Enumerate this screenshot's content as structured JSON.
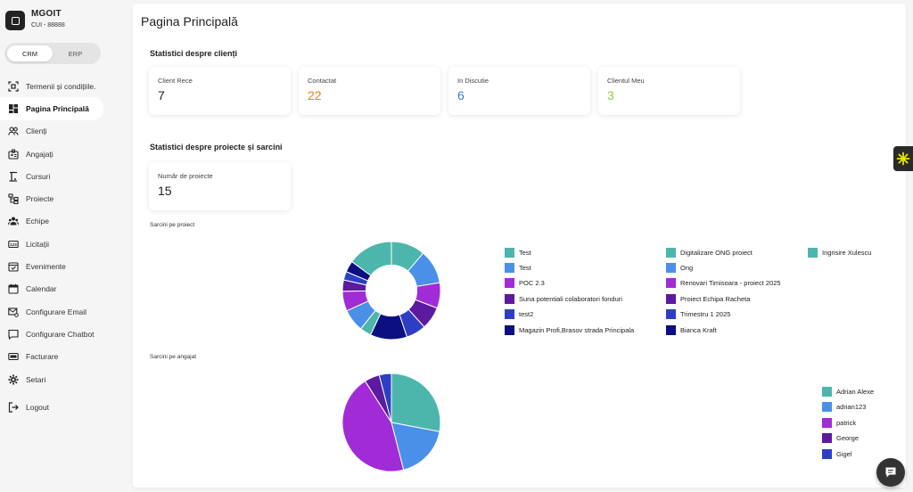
{
  "brand": {
    "name": "MGOIT",
    "cui": "CUI - 88888"
  },
  "mode_switch": {
    "crm": "CRM",
    "erp": "ERP",
    "active": "CRM"
  },
  "sidebar": {
    "items": [
      {
        "label": "Termenii și condițiile.",
        "icon": "scan-icon"
      },
      {
        "label": "Pagina Principală",
        "icon": "dashboard-icon",
        "active": true
      },
      {
        "label": "Clienți",
        "icon": "users-icon"
      },
      {
        "label": "Angajați",
        "icon": "badge-icon"
      },
      {
        "label": "Cursuri",
        "icon": "easel-icon"
      },
      {
        "label": "Proiecte",
        "icon": "hierarchy-icon"
      },
      {
        "label": "Echipe",
        "icon": "group-icon"
      },
      {
        "label": "Licitații",
        "icon": "counter-icon"
      },
      {
        "label": "Evenimente",
        "icon": "event-icon"
      },
      {
        "label": "Calendar",
        "icon": "calendar-icon"
      },
      {
        "label": "Configurare Email",
        "icon": "mail-settings-icon"
      },
      {
        "label": "Configurare Chatbot",
        "icon": "chat-icon"
      },
      {
        "label": "Facturare",
        "icon": "invoice-icon"
      },
      {
        "label": "Setari",
        "icon": "gear-icon"
      }
    ],
    "logout": "Logout"
  },
  "main": {
    "title": "Pagina Principală",
    "clients_section": "Statistici despre clienți",
    "client_stats": [
      {
        "label": "Client Rece",
        "value": "7",
        "color": "#222222"
      },
      {
        "label": "Contactat",
        "value": "22",
        "color": "#e67e22"
      },
      {
        "label": "In Discutie",
        "value": "6",
        "color": "#3d7fcf"
      },
      {
        "label": "Clientul Meu",
        "value": "3",
        "color": "#9acd32"
      }
    ],
    "projects_section": "Statistici despre proiecte și sarcini",
    "project_stats": {
      "label": "Număr de proiecte",
      "value": "15"
    },
    "chart1_label": "Sarcini pe proiect",
    "chart2_label": "Sarcini pe angajat"
  },
  "chart_data": [
    {
      "type": "pie",
      "variant": "donut",
      "title": "Sarcini pe proiect",
      "series": [
        {
          "name": "Test",
          "value": 12,
          "color": "#4db6ac"
        },
        {
          "name": "Test",
          "value": 12,
          "color": "#4a90e8"
        },
        {
          "name": "POC 2.3",
          "value": 9,
          "color": "#a12bd6"
        },
        {
          "name": "Suna potentiali colaboratori fonduri",
          "value": 8,
          "color": "#5b1aa0"
        },
        {
          "name": "test2",
          "value": 7,
          "color": "#2c3fc4"
        },
        {
          "name": "Magazin Profi,Brasov strada Principala",
          "value": 13,
          "color": "#0b0f80"
        },
        {
          "name": "Digitalizare ONG proiect",
          "value": 4,
          "color": "#4db6ac"
        },
        {
          "name": "Ong",
          "value": 8,
          "color": "#4a90e8"
        },
        {
          "name": "Renovari Timisoara - proiect 2025",
          "value": 7,
          "color": "#a12bd6"
        },
        {
          "name": "Proiect Echipa Racheta",
          "value": 4,
          "color": "#5b1aa0"
        },
        {
          "name": "Trimestru 1 2025",
          "value": 3,
          "color": "#2c3fc4"
        },
        {
          "name": "Bianca Kraft",
          "value": 4,
          "color": "#0b0f80"
        },
        {
          "name": "Ingrisire Xulescu",
          "value": 16,
          "color": "#4db6ac"
        }
      ]
    },
    {
      "type": "pie",
      "title": "Sarcini pe angajat",
      "series": [
        {
          "name": "Adrian Alexe",
          "value": 28,
          "color": "#4db6ac"
        },
        {
          "name": "adrian123",
          "value": 18,
          "color": "#4a90e8"
        },
        {
          "name": "patrick",
          "value": 45,
          "color": "#a12bd6"
        },
        {
          "name": "George",
          "value": 5,
          "color": "#5b1aa0"
        },
        {
          "name": "Gigel",
          "value": 4,
          "color": "#2c3fc4"
        }
      ]
    }
  ]
}
